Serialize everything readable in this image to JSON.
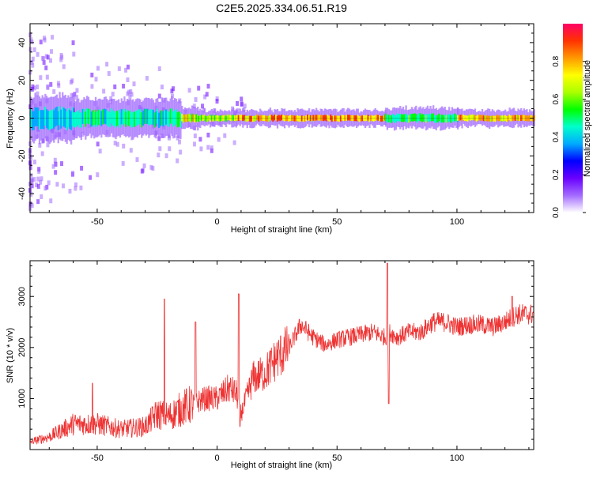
{
  "title": "C2E5.2025.334.06.51.R19",
  "colors": {
    "snr_line": "#ee3333",
    "colormap": [
      "#ffffff",
      "#a36bff",
      "#6a00ff",
      "#0000ff",
      "#00aaff",
      "#00ffcc",
      "#00ff00",
      "#aaff00",
      "#ffff00",
      "#ff9900",
      "#ff3300",
      "#ff0066"
    ]
  },
  "chart_data": [
    {
      "type": "heatmap",
      "xlabel": "Height of straight line (km)",
      "ylabel": "Frequency (Hz)",
      "xlim": [
        -78,
        132
      ],
      "ylim": [
        -50,
        50
      ],
      "xticks": [
        -50,
        0,
        50,
        100
      ],
      "yticks": [
        -40,
        -20,
        0,
        20,
        40
      ],
      "colorbar": {
        "label": "Normalized spectral amplitude",
        "range": [
          0.0,
          1.0
        ],
        "ticks": [
          0.0,
          0.2,
          0.4,
          0.6,
          0.8
        ]
      },
      "band_center_hz": 0,
      "band_segments": [
        {
          "x": [
            -78,
            -60
          ],
          "width_hz": 5,
          "amplitude": 0.45
        },
        {
          "x": [
            -60,
            -15
          ],
          "width_hz": 4,
          "amplitude": 0.55
        },
        {
          "x": [
            -15,
            -8
          ],
          "width_hz": 2,
          "amplitude": 0.8
        },
        {
          "x": [
            -8,
            8
          ],
          "width_hz": 1.5,
          "amplitude": 0.75
        },
        {
          "x": [
            8,
            70
          ],
          "width_hz": 1.5,
          "amplitude": 0.95
        },
        {
          "x": [
            70,
            100
          ],
          "width_hz": 2,
          "amplitude": 0.6
        },
        {
          "x": [
            100,
            132
          ],
          "width_hz": 1.5,
          "amplitude": 0.9
        }
      ]
    },
    {
      "type": "line",
      "xlabel": "Height of straight line (km)",
      "ylabel": "SNR (10 * v/v)",
      "xlim": [
        -78,
        132
      ],
      "ylim": [
        0,
        3700
      ],
      "xticks": [
        -50,
        0,
        50,
        100
      ],
      "yticks": [
        1000,
        2000,
        3000
      ],
      "series": [
        {
          "x": [
            -78,
            -70,
            -60,
            -50,
            -40,
            -30,
            -25,
            -20,
            -15,
            -10,
            -5,
            0,
            5,
            8,
            10,
            15,
            20,
            25,
            30,
            35,
            40,
            45,
            50,
            55,
            60,
            65,
            70,
            72,
            75,
            80,
            85,
            90,
            95,
            100,
            105,
            110,
            115,
            120,
            125,
            132
          ],
          "values": [
            150,
            250,
            500,
            500,
            400,
            450,
            700,
            650,
            800,
            900,
            1000,
            1000,
            1200,
            1100,
            700,
            1400,
            1500,
            1800,
            2000,
            2450,
            2200,
            2050,
            2150,
            2200,
            2250,
            2300,
            2200,
            2300,
            2200,
            2300,
            2300,
            2500,
            2500,
            2400,
            2450,
            2450,
            2400,
            2500,
            2650,
            2650
          ],
          "spikes": [
            {
              "x": -52,
              "value": 1300
            },
            {
              "x": -22,
              "value": 2950
            },
            {
              "x": -9,
              "value": 2500
            },
            {
              "x": 9,
              "value": 3050
            },
            {
              "x": 9.5,
              "value": 450
            },
            {
              "x": 71,
              "value": 3650
            },
            {
              "x": 71.5,
              "value": 900
            },
            {
              "x": 123,
              "value": 3000
            }
          ]
        }
      ]
    }
  ]
}
